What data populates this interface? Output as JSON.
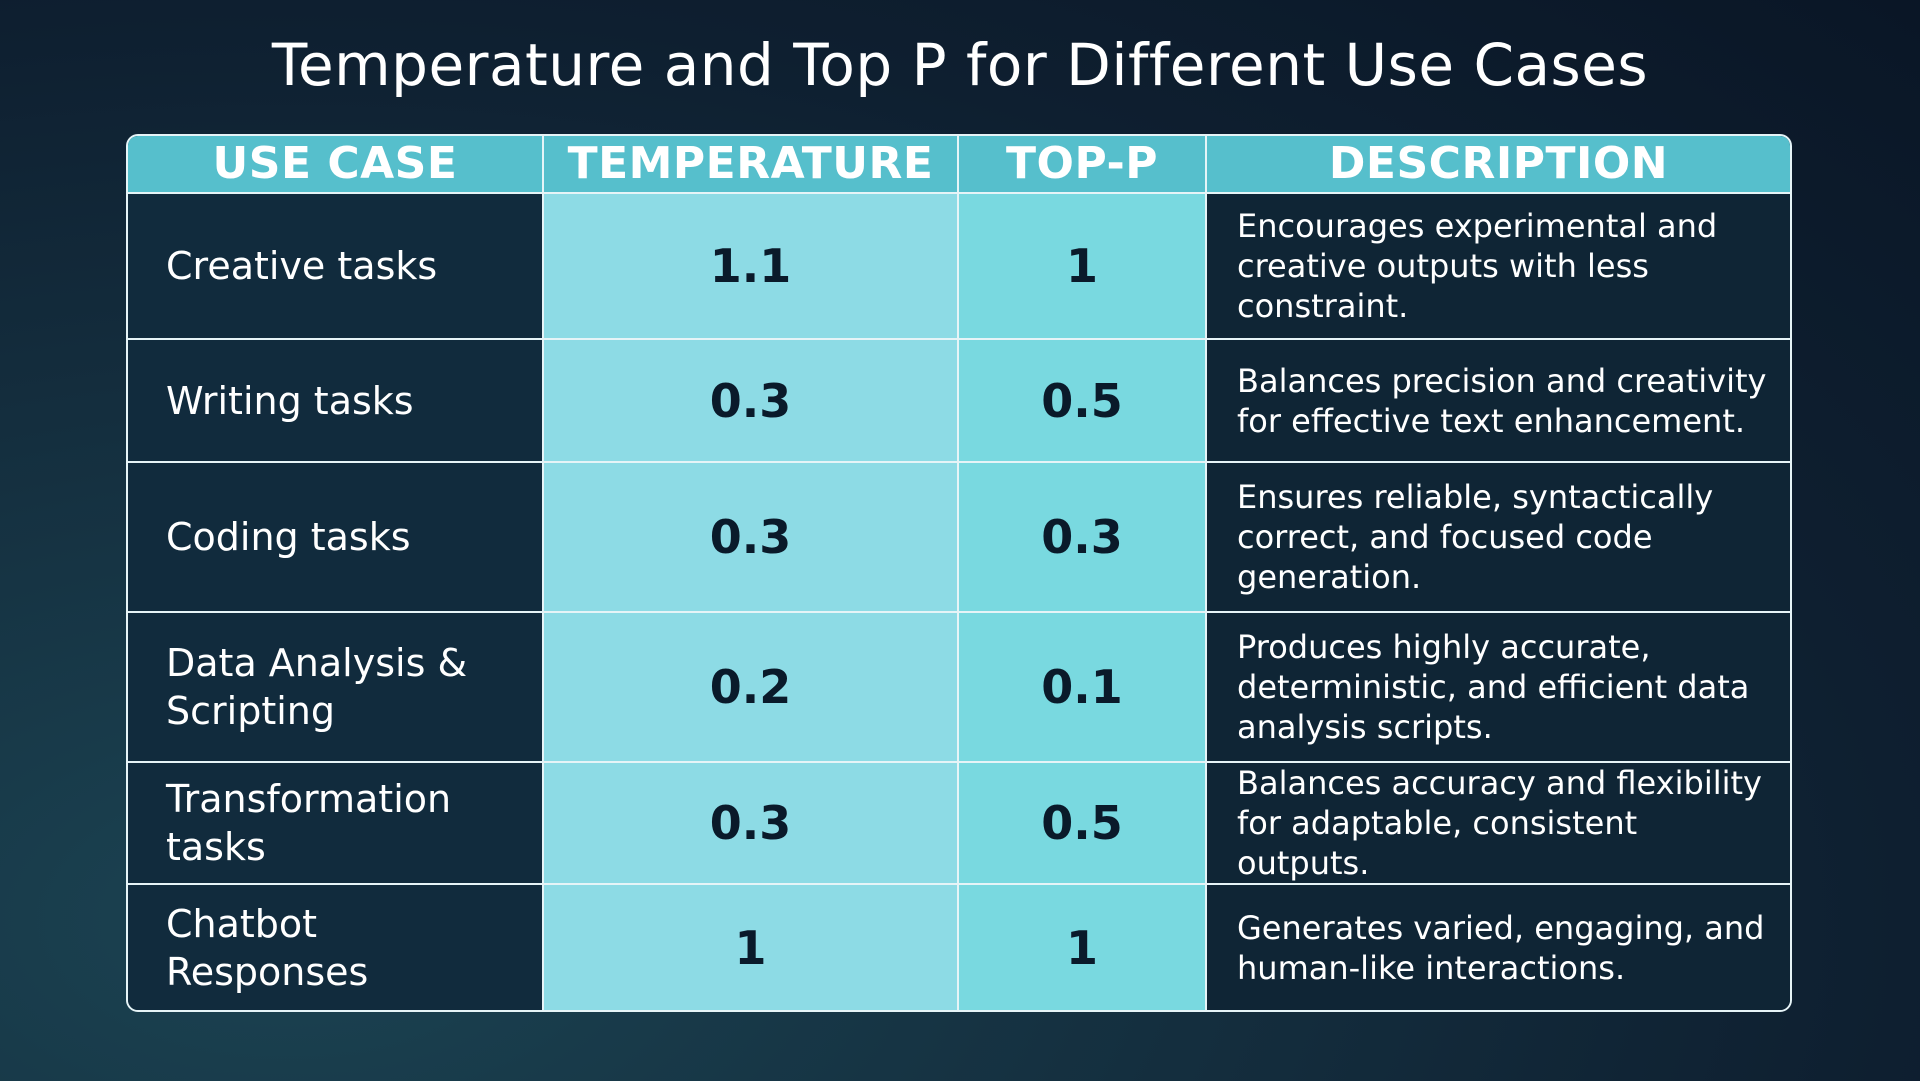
{
  "title": "Temperature and Top P for Different Use Cases",
  "colors": {
    "header_bg": "#56bfcc",
    "temperature_col": "#8ddbe5",
    "top_p_col": "#79d9e0",
    "dark_cell": "#112b3d",
    "border": "#e6f4f7"
  },
  "chart_data": {
    "type": "table",
    "title": "Temperature and Top P for Different Use Cases",
    "columns": [
      "USE CASE",
      "TEMPERATURE",
      "TOP-P",
      "DESCRIPTION"
    ],
    "rows": [
      {
        "use_case": "Creative tasks",
        "temperature": "1.1",
        "top_p": "1",
        "description": "Encourages experimental and creative outputs with less constraint."
      },
      {
        "use_case": "Writing tasks",
        "temperature": "0.3",
        "top_p": "0.5",
        "description": "Balances precision and creativity for effective text enhancement."
      },
      {
        "use_case": "Coding tasks",
        "temperature": "0.3",
        "top_p": "0.3",
        "description": "Ensures reliable, syntactically correct, and focused code generation."
      },
      {
        "use_case": "Data Analysis & Scripting",
        "temperature": "0.2",
        "top_p": "0.1",
        "description": "Produces highly accurate, deterministic, and efficient data analysis scripts."
      },
      {
        "use_case": "Transformation tasks",
        "temperature": "0.3",
        "top_p": "0.5",
        "description": "Balances accuracy and flexibility for adaptable, consistent outputs."
      },
      {
        "use_case": "Chatbot Responses",
        "temperature": "1",
        "top_p": "1",
        "description": "Generates varied, engaging, and human-like interactions."
      }
    ]
  }
}
